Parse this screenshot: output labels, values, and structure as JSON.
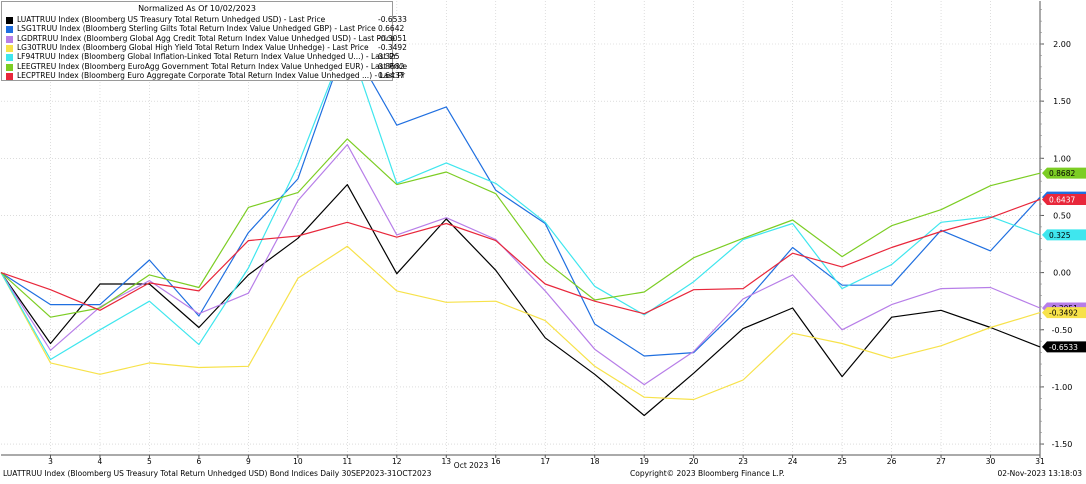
{
  "chart_data": {
    "type": "line",
    "title": "Normalized As Of 10/02/2023",
    "xlabel": "Oct 2023",
    "ylabel": "",
    "categories": [
      "2",
      "3",
      "4",
      "5",
      "6",
      "9",
      "10",
      "11",
      "12",
      "13",
      "16",
      "17",
      "18",
      "19",
      "20",
      "23",
      "24",
      "25",
      "26",
      "27",
      "30",
      "31"
    ],
    "x_tick_labels": [
      "3",
      "4",
      "5",
      "6",
      "9",
      "10",
      "11",
      "12",
      "13",
      "16",
      "17",
      "18",
      "19",
      "20",
      "23",
      "24",
      "25",
      "26",
      "27",
      "30",
      "31"
    ],
    "y_ticks": [
      "2.00",
      "1.50",
      "1.00",
      "0.50",
      "0.00",
      "-0.50",
      "-1.00",
      "-1.50"
    ],
    "ylim": [
      -1.5,
      2.3
    ],
    "grid": true,
    "legend": "top-left",
    "series": [
      {
        "name": "LUATTRUU Index (Bloomberg US Treasury Total Return Unhedged USD) - Last Price",
        "last": "-0.6533",
        "color": "#000000",
        "values": [
          0,
          -0.62,
          -0.1,
          -0.1,
          -0.48,
          -0.02,
          0.3,
          0.77,
          -0.01,
          0.47,
          0.02,
          -0.57,
          -0.89,
          -1.25,
          -0.88,
          -0.49,
          -0.31,
          -0.91,
          -0.39,
          -0.33,
          -0.48,
          -0.65
        ]
      },
      {
        "name": "LSG1TRUU Index (Bloomberg Sterling Gilts Total Return Index Value Unhedged GBP) - Last Price",
        "last": "0.6642",
        "color": "#1f6fe0",
        "values": [
          0,
          -0.28,
          -0.28,
          0.11,
          -0.38,
          0.35,
          0.82,
          2.05,
          1.29,
          1.45,
          0.72,
          0.43,
          -0.45,
          -0.73,
          -0.7,
          -0.28,
          0.22,
          -0.11,
          -0.11,
          0.37,
          0.19,
          0.66
        ]
      },
      {
        "name": "LGDRTRUU Index (Bloomberg Global Agg Credit Total Return Index Value Unhedged USD) - Last Price",
        "last": "-0.3051",
        "color": "#b77ee8",
        "values": [
          0,
          -0.68,
          -0.3,
          -0.07,
          -0.36,
          -0.18,
          0.63,
          1.12,
          0.33,
          0.48,
          0.29,
          -0.16,
          -0.67,
          -0.98,
          -0.69,
          -0.23,
          -0.02,
          -0.5,
          -0.28,
          -0.14,
          -0.13,
          -0.31
        ]
      },
      {
        "name": "LG30TRUU Index (Bloomberg Global High Yield Total Return Index Value Unhedge) - Last Price",
        "last": "-0.3492",
        "color": "#f7e24a",
        "values": [
          0,
          -0.79,
          -0.89,
          -0.79,
          -0.83,
          -0.82,
          -0.05,
          0.23,
          -0.16,
          -0.26,
          -0.25,
          -0.42,
          -0.82,
          -1.09,
          -1.11,
          -0.94,
          -0.53,
          -0.62,
          -0.75,
          -0.64,
          -0.48,
          -0.35
        ]
      },
      {
        "name": "LF94TRUU Index (Bloomberg Global Inflation-Linked Total Return Index Value Unhedged U...) - Last Pr",
        "last": "0.325",
        "color": "#3fe6ee",
        "values": [
          0,
          -0.76,
          -0.5,
          -0.25,
          -0.63,
          0.04,
          0.94,
          2.05,
          0.78,
          0.96,
          0.78,
          0.44,
          -0.12,
          -0.37,
          -0.08,
          0.29,
          0.43,
          -0.14,
          0.07,
          0.44,
          0.49,
          0.33
        ]
      },
      {
        "name": "LEEGTREU Index (Bloomberg EuroAgg Government Total Return Index Value Unhedged EUR) - Last Price",
        "last": "0.8682",
        "color": "#7ccd24",
        "values": [
          0,
          -0.39,
          -0.31,
          -0.02,
          -0.13,
          0.57,
          0.7,
          1.17,
          0.77,
          0.88,
          0.69,
          0.1,
          -0.24,
          -0.17,
          0.13,
          0.3,
          0.46,
          0.14,
          0.41,
          0.55,
          0.76,
          0.87
        ]
      },
      {
        "name": "LECPTREU Index (Bloomberg Euro Aggregate Corporate Total Return Index Value Unhedged ...) - Last Pr",
        "last": "0.6437",
        "color": "#e8273b",
        "values": [
          0,
          -0.15,
          -0.33,
          -0.09,
          -0.16,
          0.28,
          0.32,
          0.44,
          0.31,
          0.43,
          0.28,
          -0.1,
          -0.25,
          -0.36,
          -0.15,
          -0.14,
          0.17,
          0.05,
          0.22,
          0.36,
          0.48,
          0.64
        ]
      }
    ]
  },
  "footer": {
    "left": "LUATTRUU Index (Bloomberg US Treasury Total Return Unhedged USD) Bond Indices  Daily 30SEP2023-31OCT2023",
    "middle": "Copyright© 2023 Bloomberg Finance L.P.",
    "right": "02-Nov-2023 13:18:03"
  }
}
